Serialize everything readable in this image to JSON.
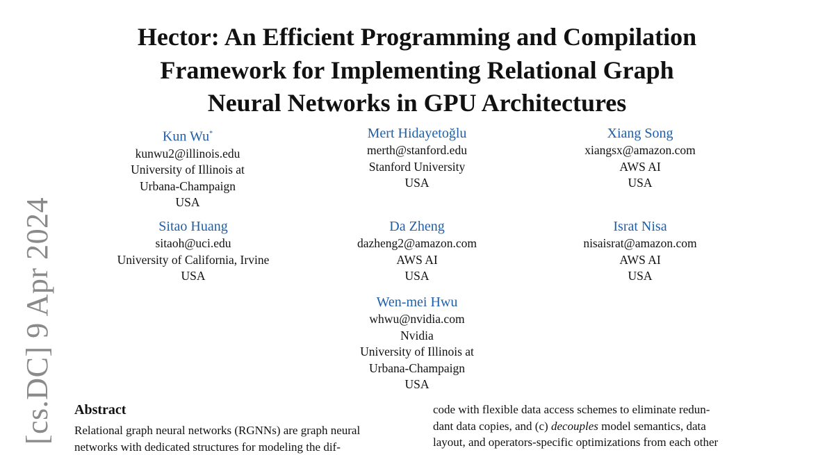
{
  "title_lines": [
    "Hector: An Efficient Programming and Compilation",
    "Framework for Implementing Relational Graph",
    "Neural Networks in GPU Architectures"
  ],
  "authors": [
    {
      "name": "Kun Wu",
      "mark": "*",
      "lines": [
        "kunwu2@illinois.edu",
        "University of Illinois at",
        "Urbana-Champaign",
        "USA"
      ]
    },
    {
      "name": "Mert Hidayetoğlu",
      "lines": [
        "merth@stanford.edu",
        "Stanford University",
        "USA"
      ]
    },
    {
      "name": "Xiang Song",
      "lines": [
        "xiangsx@amazon.com",
        "AWS AI",
        "USA"
      ]
    },
    {
      "name": "Sitao Huang",
      "lines": [
        "sitaoh@uci.edu",
        "University of California, Irvine",
        "USA"
      ]
    },
    {
      "name": "Da Zheng",
      "lines": [
        "dazheng2@amazon.com",
        "AWS AI",
        "USA"
      ]
    },
    {
      "name": "Israt Nisa",
      "lines": [
        "nisaisrat@amazon.com",
        "AWS AI",
        "USA"
      ]
    },
    {
      "name": "Wen-mei Hwu",
      "lines": [
        "whwu@nvidia.com",
        "Nvidia",
        "University of Illinois at",
        "Urbana-Champaign",
        "USA"
      ]
    }
  ],
  "arxiv_stamp": "[cs.DC]  9 Apr 2024",
  "abstract": {
    "heading": "Abstract",
    "left_lines": [
      "Relational graph neural networks (RGNNs) are graph neural",
      "networks with dedicated structures for modeling the dif-"
    ],
    "right_lines": [
      "code with flexible data access schemes to eliminate redun-",
      "dant data copies, and (c) ",
      "decouples",
      " model semantics, data",
      "layout, and operators-specific optimizations from each other"
    ]
  }
}
